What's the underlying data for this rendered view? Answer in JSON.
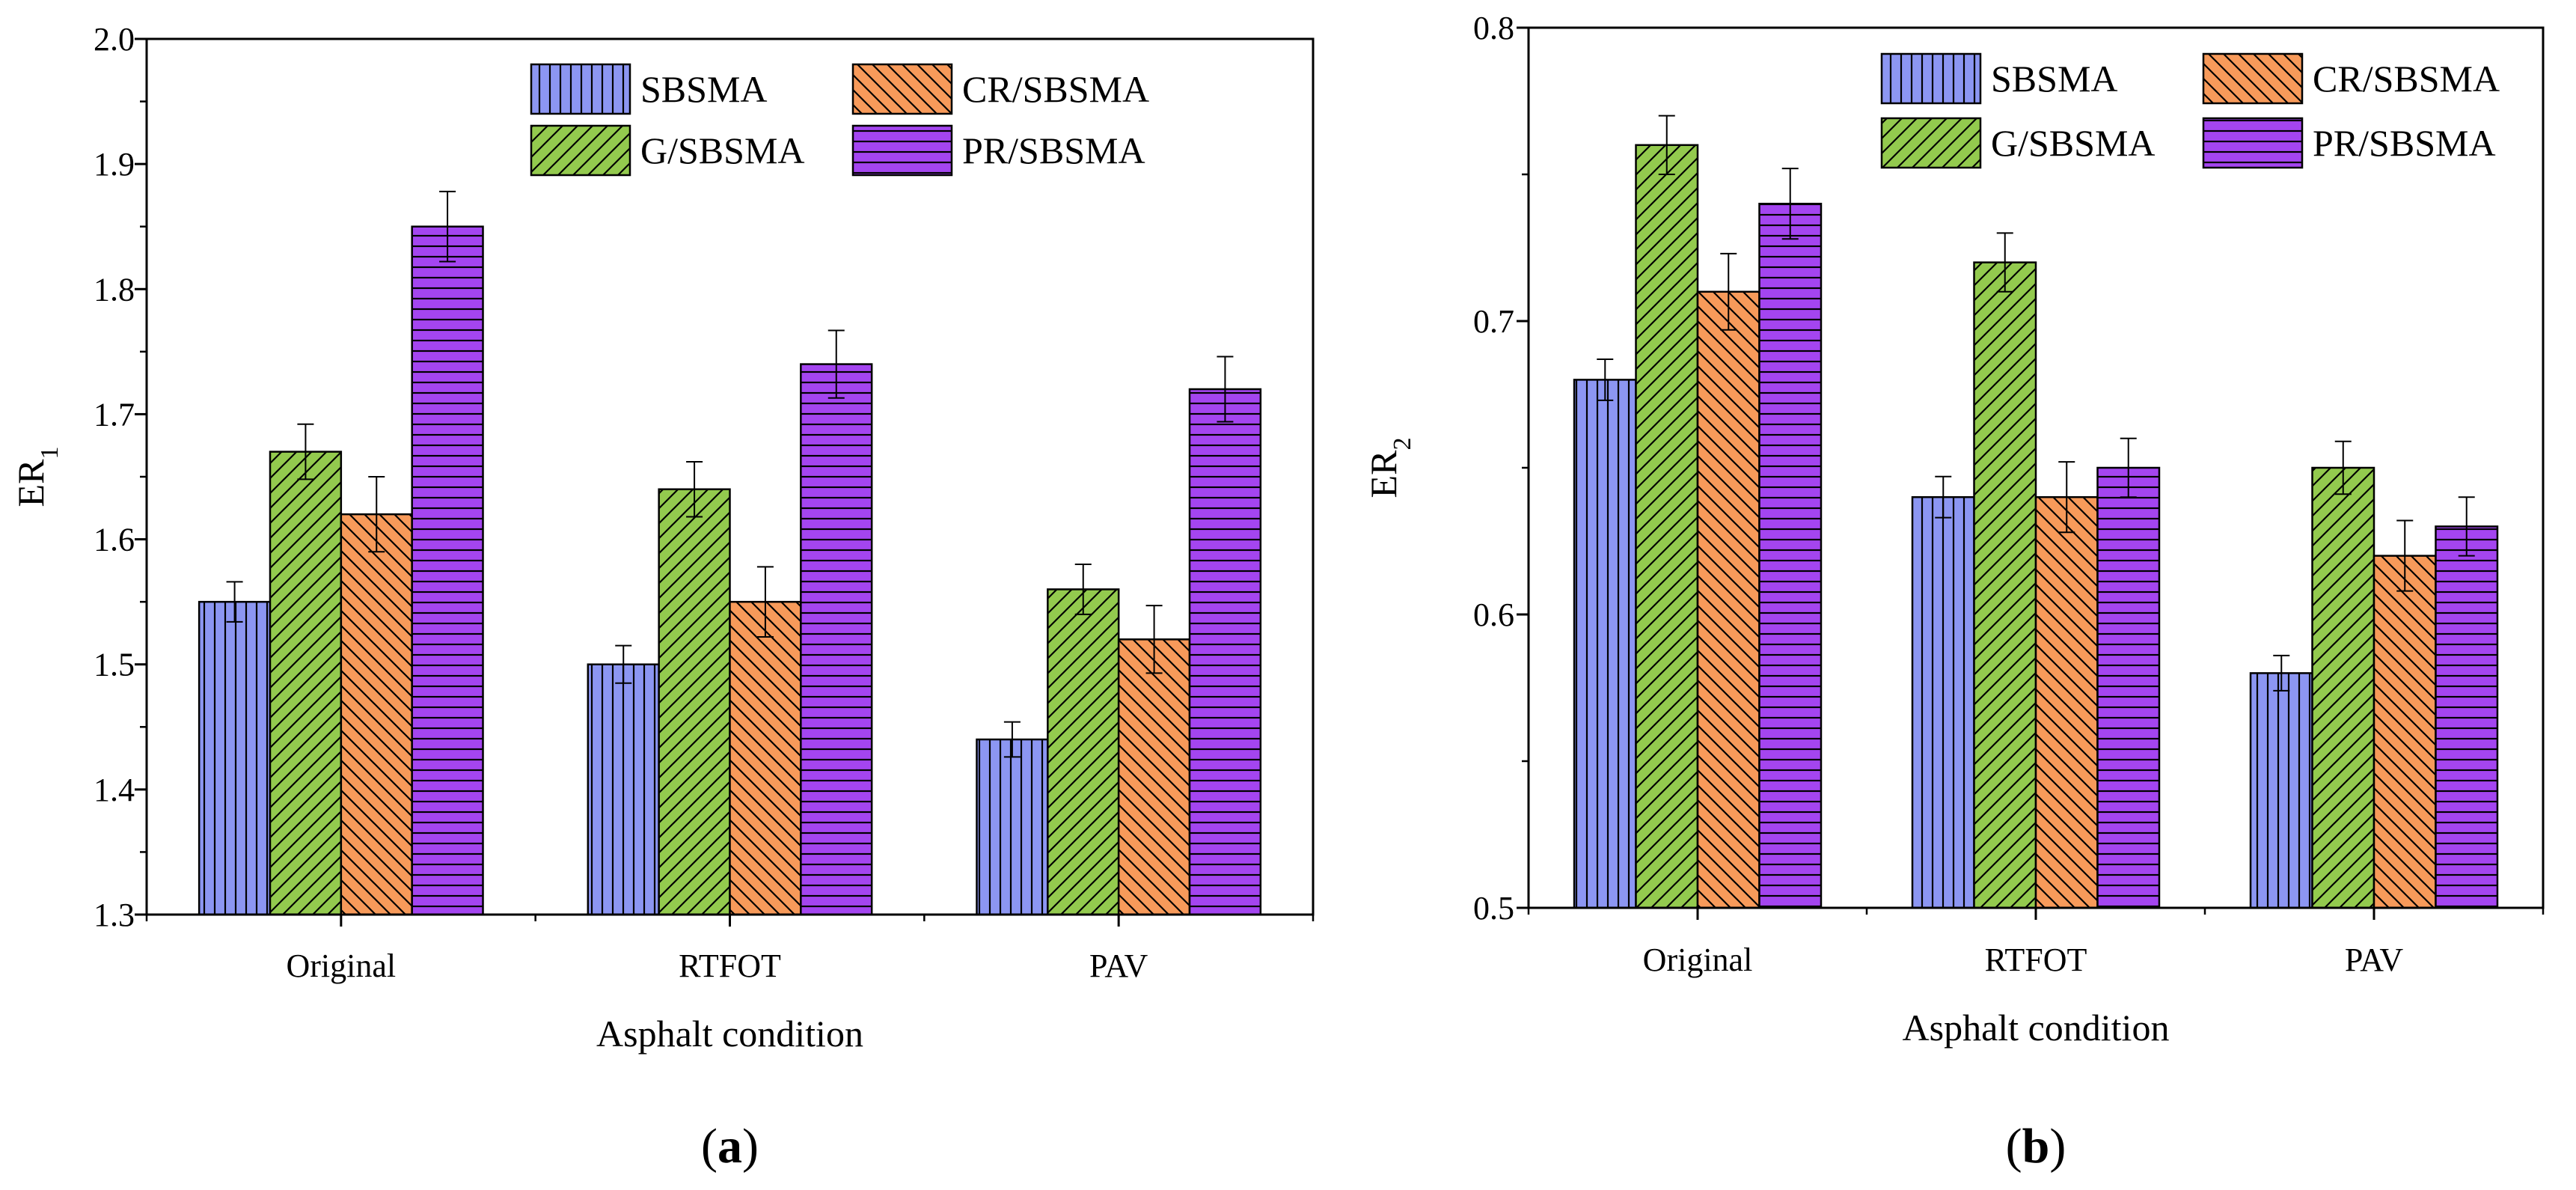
{
  "chart_data": [
    {
      "type": "bar",
      "panel": "a",
      "panel_label": "(a)",
      "categories": [
        "Original",
        "RTFOT",
        "PAV"
      ],
      "series": [
        {
          "name": "SBSMA",
          "values": [
            1.55,
            1.5,
            1.44
          ],
          "errors": [
            0.016,
            0.015,
            0.014
          ],
          "color": "#8C96F2",
          "pattern": "vertical"
        },
        {
          "name": "G/SBSMA",
          "values": [
            1.67,
            1.64,
            1.56
          ],
          "errors": [
            0.022,
            0.022,
            0.02
          ],
          "color": "#93CA4E",
          "pattern": "diagonal-up"
        },
        {
          "name": "CR/SBSMA",
          "values": [
            1.62,
            1.55,
            1.52
          ],
          "errors": [
            0.03,
            0.028,
            0.027
          ],
          "color": "#F79A5A",
          "pattern": "diagonal-down"
        },
        {
          "name": "PR/SBSMA",
          "values": [
            1.85,
            1.74,
            1.72
          ],
          "errors": [
            0.028,
            0.027,
            0.026
          ],
          "color": "#A445F0",
          "pattern": "horizontal"
        }
      ],
      "legend_order": [
        "SBSMA",
        "CR/SBSMA",
        "G/SBSMA",
        "PR/SBSMA"
      ],
      "xlabel": "Asphalt condition",
      "ylabel_main": "ER",
      "ylabel_sub": "1",
      "ylim": [
        1.3,
        2.0
      ],
      "yticks": [
        "1.3",
        "1.4",
        "1.5",
        "1.6",
        "1.7",
        "1.8",
        "1.9",
        "2.0"
      ],
      "legend": "top-right"
    },
    {
      "type": "bar",
      "panel": "b",
      "panel_label": "(b)",
      "categories": [
        "Original",
        "RTFOT",
        "PAV"
      ],
      "series": [
        {
          "name": "SBSMA",
          "values": [
            0.68,
            0.64,
            0.58
          ],
          "errors": [
            0.007,
            0.007,
            0.006
          ],
          "color": "#8C96F2",
          "pattern": "vertical"
        },
        {
          "name": "G/SBSMA",
          "values": [
            0.76,
            0.72,
            0.65
          ],
          "errors": [
            0.01,
            0.01,
            0.009
          ],
          "color": "#93CA4E",
          "pattern": "diagonal-up"
        },
        {
          "name": "CR/SBSMA",
          "values": [
            0.71,
            0.64,
            0.62
          ],
          "errors": [
            0.013,
            0.012,
            0.012
          ],
          "color": "#F79A5A",
          "pattern": "diagonal-down"
        },
        {
          "name": "PR/SBSMA",
          "values": [
            0.74,
            0.65,
            0.63
          ],
          "errors": [
            0.012,
            0.01,
            0.01
          ],
          "color": "#A445F0",
          "pattern": "horizontal"
        }
      ],
      "legend_order": [
        "SBSMA",
        "CR/SBSMA",
        "G/SBSMA",
        "PR/SBSMA"
      ],
      "xlabel": "Asphalt condition",
      "ylabel_main": "ER",
      "ylabel_sub": "2",
      "ylim": [
        0.5,
        0.8
      ],
      "yticks": [
        "0.5",
        "0.6",
        "0.7",
        "0.8"
      ],
      "legend": "top-right"
    }
  ]
}
